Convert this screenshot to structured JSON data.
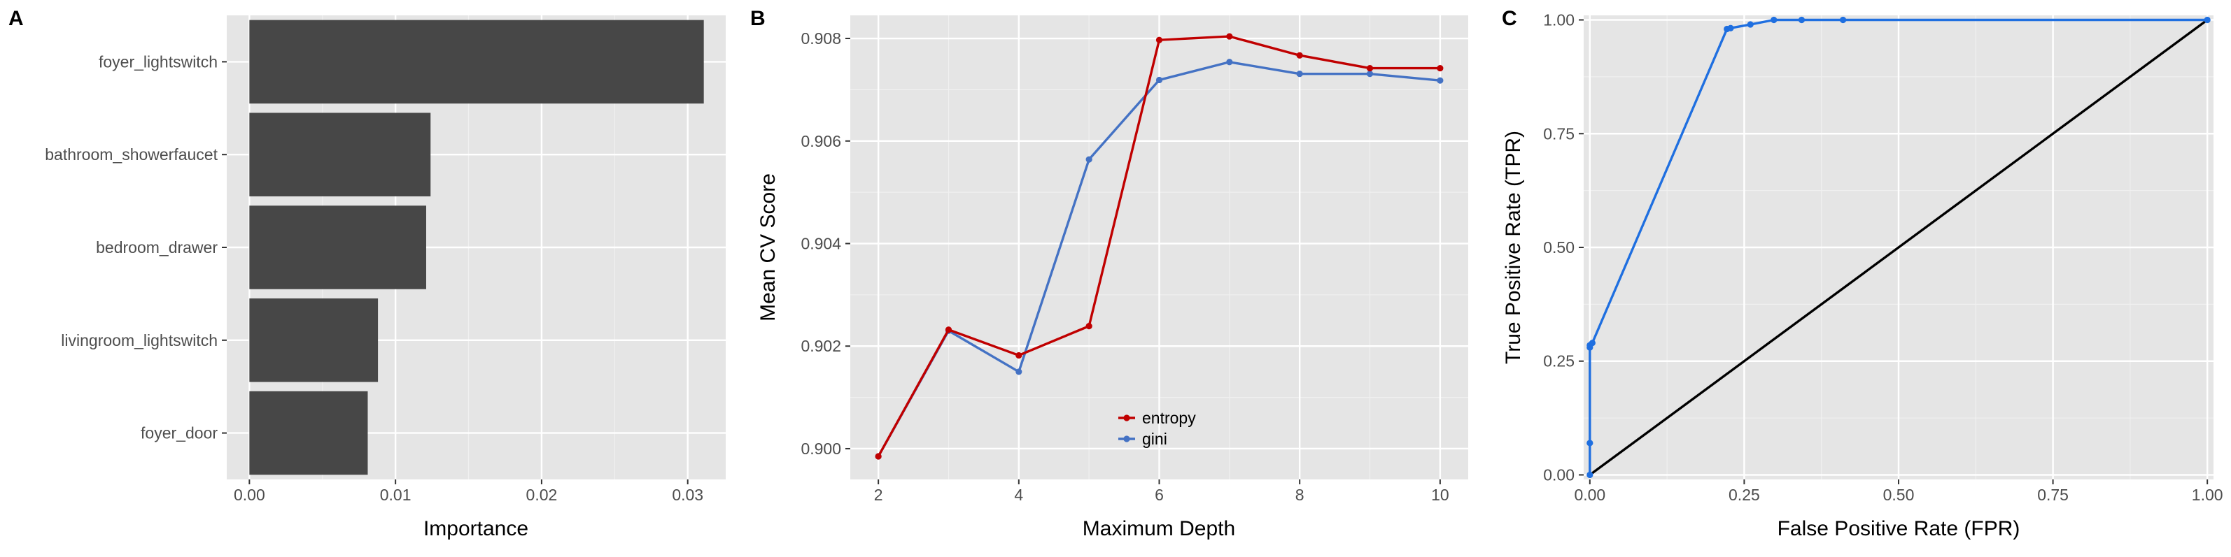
{
  "chart_data": [
    {
      "panel": "A",
      "type": "bar",
      "orientation": "horizontal",
      "categories": [
        "foyer_lightswitch",
        "bathroom_showerfaucet",
        "bedroom_drawer",
        "livingroom_lightswitch",
        "foyer_door"
      ],
      "values": [
        0.0311,
        0.0124,
        0.0121,
        0.0088,
        0.0081
      ],
      "xlabel": "Importance",
      "ylabel": "",
      "xlim": [
        -0.00155,
        0.0326
      ],
      "xticks": [
        0.0,
        0.01,
        0.02,
        0.03
      ],
      "xtick_labels": [
        "0.00",
        "0.01",
        "0.02",
        "0.03"
      ],
      "bar_color": "#474747",
      "grid": true
    },
    {
      "panel": "B",
      "type": "line",
      "x": [
        2,
        3,
        4,
        5,
        6,
        7,
        8,
        9,
        10
      ],
      "series": [
        {
          "name": "entropy",
          "color": "#c00000",
          "values": [
            0.89985,
            0.90232,
            0.90182,
            0.90239,
            0.90797,
            0.90804,
            0.90767,
            0.90742,
            0.90742
          ]
        },
        {
          "name": "gini",
          "color": "#4472c4",
          "values": [
            0.89985,
            0.9023,
            0.9015,
            0.90564,
            0.90719,
            0.90754,
            0.90731,
            0.90731,
            0.90718
          ]
        }
      ],
      "xlabel": "Maximum Depth",
      "ylabel": "Mean CV Score",
      "xlim": [
        1.6,
        10.4
      ],
      "ylim": [
        0.8994,
        0.90845
      ],
      "xticks": [
        2,
        4,
        6,
        8,
        10
      ],
      "xtick_labels": [
        "2",
        "4",
        "6",
        "8",
        "10"
      ],
      "yticks": [
        0.9,
        0.902,
        0.904,
        0.906,
        0.908
      ],
      "ytick_labels": [
        "0.900",
        "0.902",
        "0.904",
        "0.906",
        "0.908"
      ],
      "legend_position": "bottom-center",
      "grid": true
    },
    {
      "panel": "C",
      "type": "line",
      "series": [
        {
          "name": "",
          "color": "#1f6fe0",
          "x": [
            0.0,
            0.0,
            0.0,
            0.0,
            0.004,
            0.222,
            0.228,
            0.26,
            0.298,
            0.343,
            0.41,
            1.0
          ],
          "values": [
            0.0,
            0.07,
            0.28,
            0.285,
            0.29,
            0.98,
            0.982,
            0.99,
            1.0,
            1.0,
            1.0,
            1.0
          ]
        },
        {
          "name": "",
          "color": "#000000",
          "x": [
            0.0,
            1.0
          ],
          "values": [
            0.0,
            1.0
          ]
        }
      ],
      "xlabel": "False Positive Rate (FPR)",
      "ylabel": "True Positive Rate (TPR)",
      "xlim": [
        -0.01,
        1.01
      ],
      "ylim": [
        -0.01,
        1.01
      ],
      "xticks": [
        0.0,
        0.25,
        0.5,
        0.75,
        1.0
      ],
      "xtick_labels": [
        "0.00",
        "0.25",
        "0.50",
        "0.75",
        "1.00"
      ],
      "yticks": [
        0.0,
        0.25,
        0.5,
        0.75,
        1.0
      ],
      "ytick_labels": [
        "0.00",
        "0.25",
        "0.50",
        "0.75",
        "1.00"
      ],
      "grid": true
    }
  ],
  "style": {
    "panel_background": "#e5e5e5",
    "grid_major": "#ffffff",
    "grid_minor": "#f0f0f0",
    "tick_color": "#333333"
  }
}
